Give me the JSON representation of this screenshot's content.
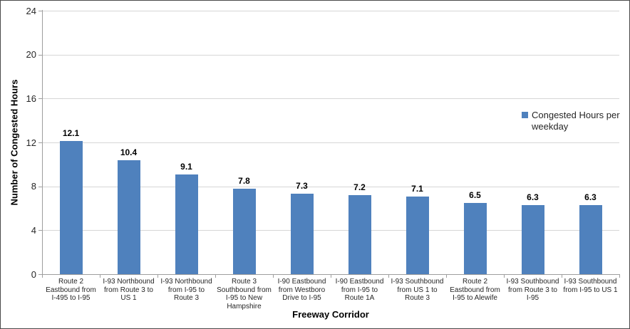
{
  "chart_data": {
    "type": "bar",
    "title": "",
    "xlabel": "Freeway Corridor",
    "ylabel": "Number of Congested Hours",
    "ylim": [
      0,
      24
    ],
    "ytick_step": 4,
    "grid": true,
    "legend_position": "right-middle",
    "bar_color": "#4F81BD",
    "axis_color": "#9E9E9E",
    "gridline_color": "#D6D6D6",
    "text_color": "#262626",
    "categories": [
      "Route 2\nEastbound from\nI-495 to I-95",
      "I-93 Northbound\nfrom Route 3 to\nUS 1",
      "I-93 Northbound\nfrom I-95 to\nRoute 3",
      "Route 3\nSouthbound from\nI-95 to New\nHampshire",
      "I-90 Eastbound\nfrom Westboro\nDrive to I-95",
      "I-90 Eastbound\nfrom I-95 to\nRoute 1A",
      "I-93 Southbound\nfrom US 1 to\nRoute 3",
      "Route 2\nEastbound from\nI-95 to Alewife",
      "I-93 Southbound\nfrom Route 3 to\nI-95",
      "I-93 Southbound\nfrom I-95 to US 1"
    ],
    "series": [
      {
        "name": "Congested Hours per weekday",
        "values": [
          12.1,
          10.4,
          9.1,
          7.8,
          7.3,
          7.2,
          7.1,
          6.5,
          6.3,
          6.3
        ]
      }
    ],
    "value_label_decimals": 1
  }
}
